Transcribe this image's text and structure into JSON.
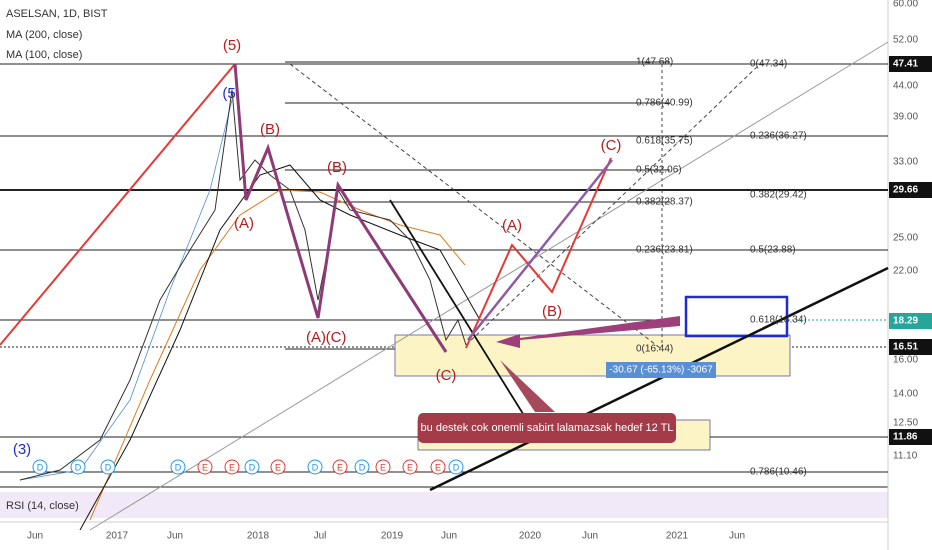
{
  "header": {
    "symbol": "ASELSAN, 1D, BIST",
    "indicators": [
      "MA (200, close)",
      "MA (100, close)"
    ],
    "rsi": "RSI (14, close)"
  },
  "price_axis": [
    "60.00",
    "52.00",
    "47.41",
    "44.00",
    "39.00",
    "33.00",
    "29.66",
    "25.00",
    "22.00",
    "18.29",
    "16.51",
    "16.00",
    "14.00",
    "12.50",
    "11.86",
    "11.10"
  ],
  "time_axis": [
    "Jun",
    "2017",
    "Jun",
    "2018",
    "Jul",
    "2019",
    "Jun",
    "2020",
    "Jun",
    "2021",
    "Jun"
  ],
  "fib_left": [
    "1(47.68)",
    "0.786(40.99)",
    "0.618(35.75)",
    "0.5(32.06)",
    "0.382(28.37)",
    "0.236(23.81)",
    "0(16.44)"
  ],
  "fib_right": [
    "0(47.34)",
    "0.236(36.27)",
    "0.382(29.42)",
    "0.5(23.88)",
    "0.618(18.34)",
    "0.786(10.46)"
  ],
  "waves": [
    "(5)",
    "(5",
    "(B)",
    "(A)",
    "(B)",
    "(A)",
    "(C)",
    "(C)",
    "(A)",
    "(B)",
    "(C)",
    "(3)"
  ],
  "measure": "-30.67 (-65.13%) -3067",
  "annotation": "bu destek cok onemli sabirt lalamazsak hedef  12 TL",
  "events": [
    "D",
    "D",
    "D",
    "D",
    "E",
    "E",
    "D",
    "E",
    "D",
    "E",
    "D",
    "E",
    "E",
    "E",
    "D"
  ]
}
